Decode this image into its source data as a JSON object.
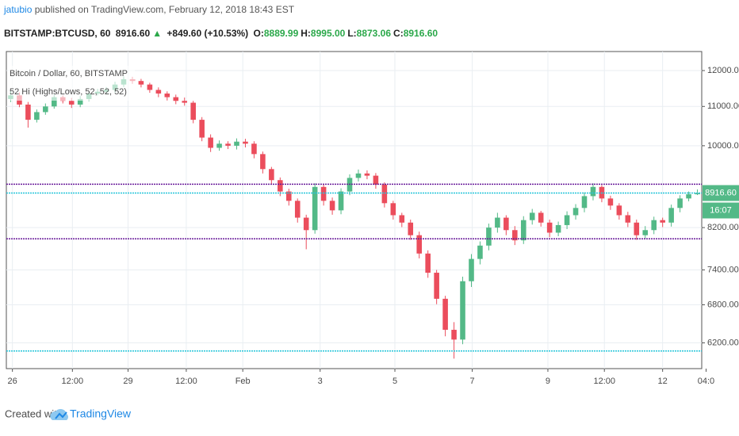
{
  "header": {
    "author": "jatubio",
    "published": " published on TradingView.com, February 12, 2018 18:43 EST",
    "symbol": "BITSTAMP:BTCUSD, 60",
    "last": "8916.60",
    "arrow": "▲",
    "change": "+849.60 (+10.53%)",
    "ohlc": [
      {
        "label": "O:",
        "value": "8889.99"
      },
      {
        "label": "H:",
        "value": "8995.00"
      },
      {
        "label": "L:",
        "value": "8873.06"
      },
      {
        "label": "C:",
        "value": "8916.60"
      }
    ]
  },
  "chart_data": {
    "type": "candlestick",
    "title": "Bitcoin / Dollar, 60, BITSTAMP",
    "indicator": "52 Hi (Highs/Lows, 52, 52, 52)",
    "log_scale": true,
    "grid": true,
    "up_color": "#53b987",
    "down_color": "#eb4d5c",
    "open": [
      11200,
      11300,
      11050,
      10650,
      10850,
      11000,
      11250,
      11150,
      11050,
      11200,
      11350,
      11400,
      11450,
      11600,
      11750,
      11700,
      11600,
      11450,
      11350,
      11250,
      11150,
      11100,
      10650,
      10200,
      9950,
      10050,
      10000,
      10100,
      10050,
      9800,
      9450,
      9200,
      8950,
      8750,
      8400,
      8150,
      9050,
      8750,
      8550,
      8950,
      9250,
      9350,
      9300,
      9100,
      8700,
      8450,
      8300,
      8050,
      7700,
      7350,
      6900,
      6400,
      6250,
      7200,
      7600,
      7850,
      8200,
      8400,
      8150,
      7950,
      8350,
      8500,
      8300,
      8100,
      8250,
      8450,
      8600,
      8850,
      9050,
      8800,
      8650,
      8450,
      8300,
      8050,
      8150,
      8350,
      8300,
      8600,
      8800,
      8889.99
    ],
    "high": [
      11420,
      11380,
      11120,
      10920,
      11080,
      11320,
      11300,
      11230,
      11280,
      11420,
      11480,
      11530,
      11680,
      11830,
      11820,
      11760,
      11650,
      11520,
      11410,
      11320,
      11240,
      11150,
      10720,
      10280,
      10130,
      10110,
      10180,
      10170,
      10110,
      9860,
      9500,
      9260,
      9010,
      8800,
      8460,
      9130,
      9120,
      8820,
      9020,
      9330,
      9440,
      9420,
      9360,
      9150,
      8750,
      8500,
      8360,
      8120,
      7760,
      7400,
      6950,
      6520,
      7280,
      7690,
      7930,
      8280,
      8500,
      8450,
      8230,
      8430,
      8580,
      8540,
      8360,
      8320,
      8530,
      8680,
      8930,
      9130,
      9090,
      8860,
      8700,
      8520,
      8360,
      8230,
      8420,
      8400,
      8670,
      8870,
      8950,
      8995
    ],
    "low": [
      11120,
      10980,
      10450,
      10580,
      10780,
      10940,
      11080,
      10960,
      10980,
      11140,
      11300,
      11340,
      11380,
      11530,
      11620,
      11520,
      11370,
      11250,
      11160,
      11060,
      11020,
      10560,
      10110,
      9850,
      9880,
      9920,
      9910,
      9960,
      9700,
      9350,
      9100,
      8850,
      8650,
      8300,
      7780,
      8080,
      8650,
      8460,
      8470,
      8870,
      9170,
      9220,
      9010,
      8610,
      8360,
      8210,
      7960,
      7610,
      7260,
      6810,
      6300,
      5968,
      6180,
      7100,
      7500,
      7760,
      8100,
      8050,
      7860,
      7880,
      8260,
      8220,
      8010,
      8030,
      8170,
      8360,
      8510,
      8760,
      8720,
      8560,
      8360,
      8210,
      7960,
      7980,
      8070,
      8210,
      8220,
      8510,
      8740,
      8873.06
    ],
    "close": [
      11300,
      11050,
      10650,
      10850,
      11000,
      11250,
      11150,
      11050,
      11200,
      11350,
      11400,
      11450,
      11600,
      11750,
      11700,
      11600,
      11450,
      11350,
      11250,
      11150,
      11100,
      10650,
      10200,
      9950,
      10050,
      10000,
      10100,
      10050,
      9800,
      9450,
      9200,
      8950,
      8750,
      8400,
      8150,
      9050,
      8750,
      8550,
      8950,
      9250,
      9350,
      9300,
      9100,
      8700,
      8450,
      8300,
      8050,
      7700,
      7350,
      6900,
      6400,
      6250,
      7200,
      7600,
      7850,
      8200,
      8400,
      8150,
      7950,
      8350,
      8500,
      8300,
      8100,
      8250,
      8450,
      8600,
      8850,
      9050,
      8800,
      8650,
      8450,
      8300,
      8050,
      8150,
      8350,
      8300,
      8600,
      8800,
      8889.99,
      8916.6
    ],
    "levels": [
      {
        "value": 9110,
        "color": "#6a1b9a"
      },
      {
        "value": 8916.6,
        "color": "#26c6da"
      },
      {
        "value": 7980,
        "color": "#6a1b9a"
      },
      {
        "value": 6080,
        "color": "#26c6da"
      }
    ],
    "xlim": [
      -0.5,
      79.5
    ],
    "xticks": [
      {
        "value": 0.2,
        "label": "26"
      },
      {
        "value": 7.1,
        "label": "12:00"
      },
      {
        "value": 13.5,
        "label": "29"
      },
      {
        "value": 20.2,
        "label": "12:00"
      },
      {
        "value": 26.7,
        "label": "Feb"
      },
      {
        "value": 35.6,
        "label": "3"
      },
      {
        "value": 44.2,
        "label": "5"
      },
      {
        "value": 53.1,
        "label": "7"
      },
      {
        "value": 61.8,
        "label": "9"
      },
      {
        "value": 68.3,
        "label": "12:00"
      },
      {
        "value": 75,
        "label": "12"
      },
      {
        "value": 80,
        "label": "04:0"
      }
    ],
    "ylim": [
      5825,
      12567
    ],
    "yticks": [
      {
        "value": 12000,
        "label": "12000.00"
      },
      {
        "value": 11000,
        "label": "11000.00"
      },
      {
        "value": 10000,
        "label": "10000.00"
      },
      {
        "value": 8200,
        "label": "8200.00"
      },
      {
        "value": 7400,
        "label": "7400.00"
      },
      {
        "value": 6800,
        "label": "6800.00"
      },
      {
        "value": 6200,
        "label": "6200.00"
      }
    ],
    "price_tag": "8916.60",
    "price_tag_color": "#53b987",
    "countdown": "16:07"
  },
  "footer": {
    "created": "Created with",
    "brand": "TradingView"
  }
}
